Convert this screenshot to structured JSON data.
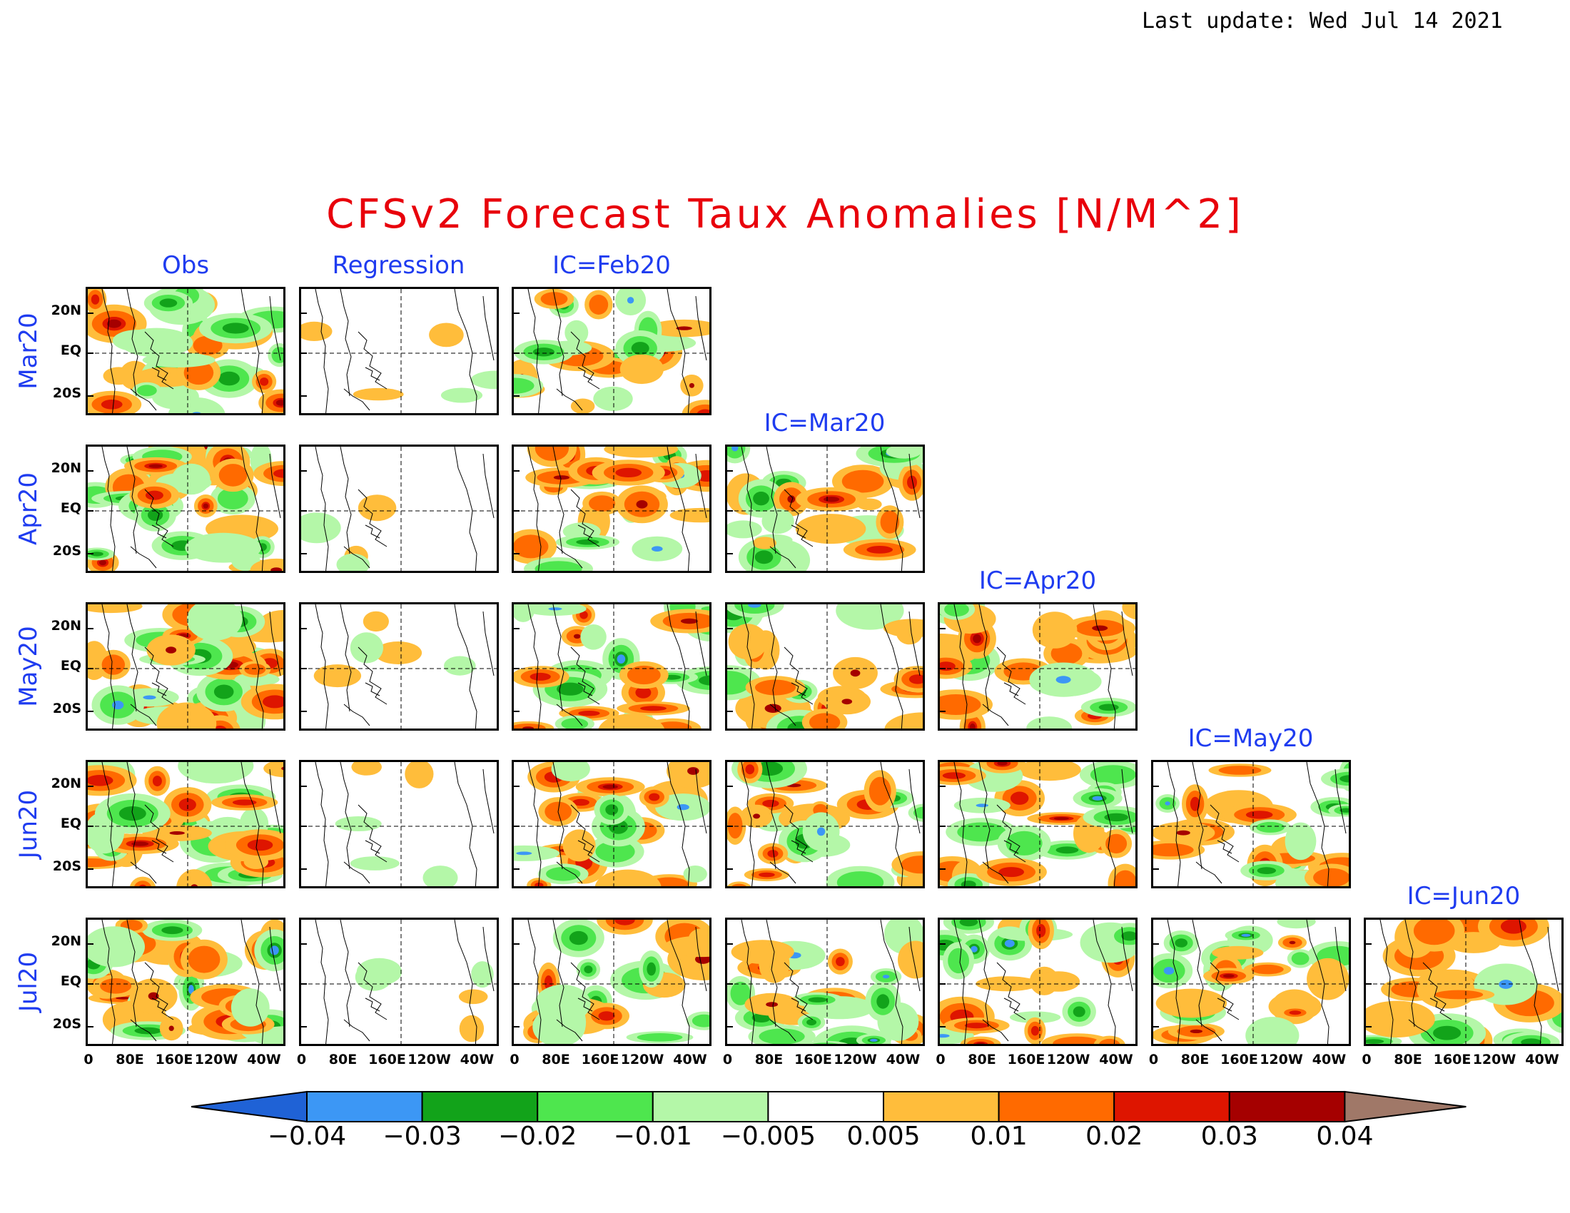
{
  "header": {
    "last_update": "Last update: Wed Jul 14 2021",
    "title": "CFSv2 Forecast Taux Anomalies [N/M^2]"
  },
  "columns": [
    "Obs",
    "Regression",
    "IC=Feb20",
    "IC=Mar20",
    "IC=Apr20",
    "IC=May20",
    "IC=Jun20"
  ],
  "rows": [
    "Mar20",
    "Apr20",
    "May20",
    "Jun20",
    "Jul20"
  ],
  "y_ticks": [
    "20N",
    "EQ",
    "20S"
  ],
  "x_ticks": [
    "0",
    "80E",
    "160E",
    "120W",
    "40W"
  ],
  "colorbar": {
    "labels": [
      "−0.04",
      "−0.03",
      "−0.02",
      "−0.01",
      "−0.005",
      "0.005",
      "0.01",
      "0.02",
      "0.03",
      "0.04"
    ],
    "colors": [
      "#1f62d6",
      "#3c97f5",
      "#12a31a",
      "#4ee64e",
      "#b4f7a8",
      "#ffffff",
      "#ffbd3b",
      "#ff6a00",
      "#de1500",
      "#a50000",
      "#a07868"
    ]
  },
  "colors": {
    "title": "#e8000b",
    "labels": "#1f3cf0"
  }
}
